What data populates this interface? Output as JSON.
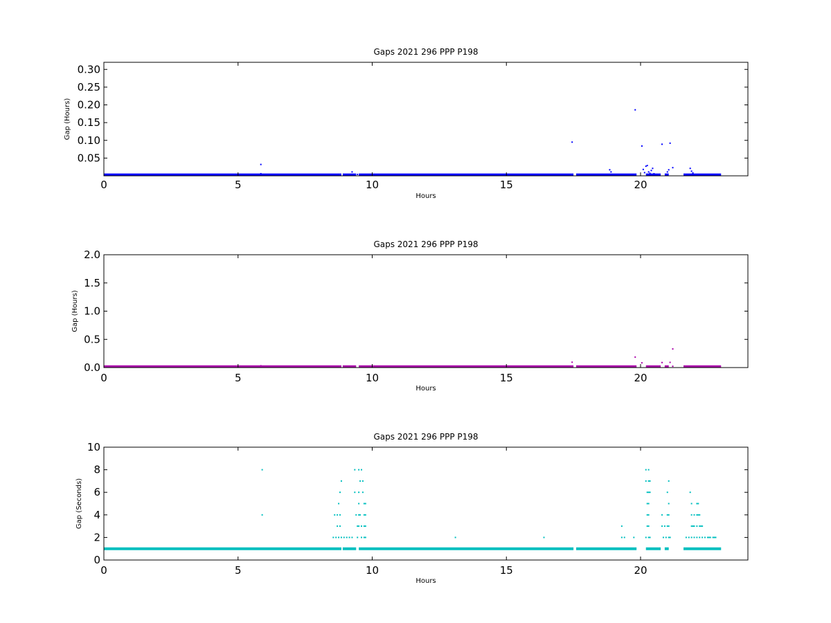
{
  "chart_data": [
    {
      "type": "scatter",
      "title": "Gaps 2021 296 PPP  P198",
      "xlabel": "Hours",
      "ylabel": "Gap (Hours)",
      "xlim": [
        0,
        24
      ],
      "ylim": [
        0,
        0.32
      ],
      "xticks": [
        0,
        5,
        10,
        15,
        20
      ],
      "xtick_labels": [
        "0",
        "5",
        "10",
        "15",
        "20"
      ],
      "yticks": [
        0.05,
        0.1,
        0.15,
        0.2,
        0.25,
        0.3
      ],
      "ytick_labels": [
        "0.05",
        "0.10",
        "0.15",
        "0.20",
        "0.25",
        "0.30"
      ],
      "grid": false,
      "color": "#0000ff",
      "baseline": {
        "y": 0.0003,
        "segments": [
          [
            0,
            8.85
          ],
          [
            8.9,
            9.4
          ],
          [
            9.5,
            17.5
          ],
          [
            17.6,
            19.85
          ],
          [
            20.2,
            20.75
          ],
          [
            20.9,
            21.05
          ],
          [
            21.6,
            23.0
          ]
        ]
      },
      "points": [
        [
          5.85,
          0.032
        ],
        [
          5.85,
          0.006
        ],
        [
          8.75,
          0.004
        ],
        [
          9.25,
          0.011
        ],
        [
          9.45,
          0.004
        ],
        [
          17.45,
          0.095
        ],
        [
          18.85,
          0.017
        ],
        [
          18.9,
          0.011
        ],
        [
          19.8,
          0.186
        ],
        [
          20.05,
          0.084
        ],
        [
          20.1,
          0.018
        ],
        [
          20.15,
          0.009
        ],
        [
          20.2,
          0.027
        ],
        [
          20.25,
          0.029
        ],
        [
          20.3,
          0.011
        ],
        [
          20.35,
          0.007
        ],
        [
          20.4,
          0.015
        ],
        [
          20.45,
          0.021
        ],
        [
          20.5,
          0.006
        ],
        [
          20.8,
          0.089
        ],
        [
          21.0,
          0.011
        ],
        [
          21.05,
          0.017
        ],
        [
          21.1,
          0.092
        ],
        [
          21.2,
          0.023
        ],
        [
          21.85,
          0.021
        ],
        [
          21.9,
          0.013
        ],
        [
          21.95,
          0.008
        ]
      ]
    },
    {
      "type": "scatter",
      "title": "Gaps 2021 296 PPP  P198",
      "xlabel": "Hours",
      "ylabel": "Gap (Hours)",
      "xlim": [
        0,
        24
      ],
      "ylim": [
        0,
        2.0
      ],
      "xticks": [
        0,
        5,
        10,
        15,
        20
      ],
      "xtick_labels": [
        "0",
        "5",
        "10",
        "15",
        "20"
      ],
      "yticks": [
        0.0,
        0.5,
        1.0,
        1.5,
        2.0
      ],
      "ytick_labels": [
        "0.0",
        "0.5",
        "1.0",
        "1.5",
        "2.0"
      ],
      "grid": false,
      "color": "#aa00aa",
      "baseline": {
        "y": 0.0003,
        "segments": [
          [
            0,
            8.85
          ],
          [
            8.9,
            9.4
          ],
          [
            9.5,
            17.5
          ],
          [
            17.6,
            19.85
          ],
          [
            20.2,
            20.75
          ],
          [
            20.9,
            21.05
          ],
          [
            21.6,
            23.0
          ]
        ]
      },
      "points": [
        [
          5.85,
          0.032
        ],
        [
          17.45,
          0.095
        ],
        [
          19.8,
          0.186
        ],
        [
          20.05,
          0.084
        ],
        [
          20.8,
          0.089
        ],
        [
          21.1,
          0.092
        ],
        [
          21.2,
          0.33
        ],
        [
          21.2,
          0.023
        ]
      ]
    },
    {
      "type": "scatter",
      "title": "Gaps 2021 296 PPP  P198",
      "xlabel": "Hours",
      "ylabel": "Gap (Seconds)",
      "xlim": [
        0,
        24
      ],
      "ylim": [
        0,
        10
      ],
      "xticks": [
        0,
        5,
        10,
        15,
        20
      ],
      "xtick_labels": [
        "0",
        "5",
        "10",
        "15",
        "20"
      ],
      "yticks": [
        0,
        2,
        4,
        6,
        8,
        10
      ],
      "ytick_labels": [
        "0",
        "2",
        "4",
        "6",
        "8",
        "10"
      ],
      "grid": false,
      "color": "#00bfbf",
      "baseline": {
        "y": 1,
        "segments": [
          [
            0,
            8.85
          ],
          [
            8.9,
            9.4
          ],
          [
            9.5,
            17.5
          ],
          [
            17.6,
            19.85
          ],
          [
            20.2,
            20.75
          ],
          [
            20.9,
            21.05
          ],
          [
            21.6,
            23.0
          ]
        ]
      },
      "points": [
        [
          5.9,
          8
        ],
        [
          5.9,
          4
        ],
        [
          8.6,
          4
        ],
        [
          8.7,
          4
        ],
        [
          8.75,
          5
        ],
        [
          8.8,
          6
        ],
        [
          8.8,
          4
        ],
        [
          8.85,
          7
        ],
        [
          8.7,
          3
        ],
        [
          8.8,
          3
        ],
        [
          8.55,
          2
        ],
        [
          8.65,
          2
        ],
        [
          8.75,
          2
        ],
        [
          8.85,
          2
        ],
        [
          8.95,
          2
        ],
        [
          9.05,
          2
        ],
        [
          9.15,
          2
        ],
        [
          9.25,
          2
        ],
        [
          9.35,
          8
        ],
        [
          9.35,
          6
        ],
        [
          9.4,
          4
        ],
        [
          9.45,
          3
        ],
        [
          9.45,
          2
        ],
        [
          9.5,
          8
        ],
        [
          9.55,
          7
        ],
        [
          9.5,
          6
        ],
        [
          9.55,
          4
        ],
        [
          9.6,
          3
        ],
        [
          9.6,
          2
        ],
        [
          9.6,
          8
        ],
        [
          9.65,
          7
        ],
        [
          9.65,
          6
        ],
        [
          9.7,
          5
        ],
        [
          9.7,
          4
        ],
        [
          9.7,
          3
        ],
        [
          9.7,
          2
        ],
        [
          9.75,
          5
        ],
        [
          9.75,
          4
        ],
        [
          9.75,
          3
        ],
        [
          9.75,
          2
        ],
        [
          9.5,
          5
        ],
        [
          9.5,
          4
        ],
        [
          9.5,
          3
        ],
        [
          13.1,
          2
        ],
        [
          16.4,
          2
        ],
        [
          19.3,
          3
        ],
        [
          19.3,
          2
        ],
        [
          19.4,
          2
        ],
        [
          19.75,
          2
        ],
        [
          20.2,
          8
        ],
        [
          20.3,
          8
        ],
        [
          20.2,
          7
        ],
        [
          20.3,
          7
        ],
        [
          20.35,
          7
        ],
        [
          20.25,
          6
        ],
        [
          20.3,
          6
        ],
        [
          20.35,
          6
        ],
        [
          20.25,
          5
        ],
        [
          20.3,
          5
        ],
        [
          20.25,
          4
        ],
        [
          20.3,
          4
        ],
        [
          20.25,
          3
        ],
        [
          20.3,
          3
        ],
        [
          20.2,
          2
        ],
        [
          20.3,
          2
        ],
        [
          20.35,
          2
        ],
        [
          20.8,
          4
        ],
        [
          20.8,
          3
        ],
        [
          20.85,
          2
        ],
        [
          20.9,
          3
        ],
        [
          20.95,
          2
        ],
        [
          21.0,
          6
        ],
        [
          21.0,
          4
        ],
        [
          21.0,
          3
        ],
        [
          21.05,
          7
        ],
        [
          21.05,
          5
        ],
        [
          21.05,
          4
        ],
        [
          21.05,
          3
        ],
        [
          21.05,
          2
        ],
        [
          21.1,
          2
        ],
        [
          21.7,
          2
        ],
        [
          21.8,
          2
        ],
        [
          21.85,
          6
        ],
        [
          21.9,
          5
        ],
        [
          21.9,
          4
        ],
        [
          21.9,
          3
        ],
        [
          21.9,
          2
        ],
        [
          21.95,
          3
        ],
        [
          22.0,
          4
        ],
        [
          22.0,
          3
        ],
        [
          22.0,
          2
        ],
        [
          22.1,
          5
        ],
        [
          22.1,
          4
        ],
        [
          22.1,
          3
        ],
        [
          22.1,
          2
        ],
        [
          22.15,
          5
        ],
        [
          22.15,
          4
        ],
        [
          22.2,
          4
        ],
        [
          22.2,
          3
        ],
        [
          22.2,
          2
        ],
        [
          22.25,
          3
        ],
        [
          22.3,
          3
        ],
        [
          22.3,
          2
        ],
        [
          22.4,
          2
        ],
        [
          22.5,
          2
        ],
        [
          22.55,
          2
        ],
        [
          22.6,
          2
        ],
        [
          22.7,
          2
        ],
        [
          22.75,
          2
        ],
        [
          22.8,
          2
        ]
      ]
    }
  ]
}
